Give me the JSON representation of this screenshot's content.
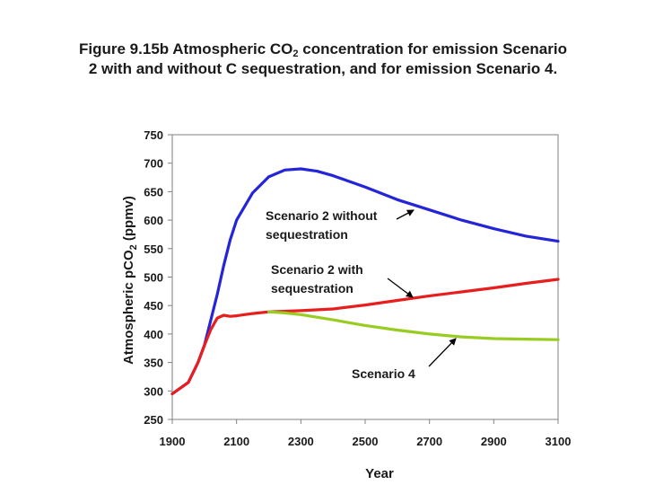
{
  "title": {
    "line1_prefix": "Figure 9.15b Atmospheric CO",
    "line1_sub": "2",
    "line1_suffix": " concentration for emission Scenario",
    "line2": "2 with and without C sequestration, and for emission Scenario 4."
  },
  "chart_data": {
    "type": "line",
    "xlabel": "Year",
    "ylabel_prefix": "Atmospheric pCO",
    "ylabel_sub": "2",
    "ylabel_suffix": " (ppmv)",
    "xlim": [
      1900,
      3100
    ],
    "ylim": [
      250,
      750
    ],
    "xticks": [
      1900,
      2100,
      2300,
      2500,
      2700,
      2900,
      3100
    ],
    "yticks": [
      250,
      300,
      350,
      400,
      450,
      500,
      550,
      600,
      650,
      700,
      750
    ],
    "grid": false,
    "series": [
      {
        "name": "Scenario 2 without sequestration",
        "color": "#2424d8",
        "x": [
          1900,
          1950,
          1980,
          2000,
          2020,
          2040,
          2060,
          2080,
          2100,
          2150,
          2200,
          2250,
          2300,
          2350,
          2400,
          2500,
          2600,
          2700,
          2800,
          2900,
          3000,
          3100
        ],
        "y": [
          295,
          315,
          350,
          380,
          425,
          470,
          520,
          565,
          600,
          648,
          676,
          688,
          690,
          686,
          678,
          658,
          636,
          618,
          600,
          585,
          572,
          563
        ]
      },
      {
        "name": "Scenario 2 with sequestration",
        "color": "#e81e1e",
        "x": [
          1900,
          1950,
          1980,
          2000,
          2020,
          2040,
          2060,
          2080,
          2100,
          2150,
          2200,
          2300,
          2400,
          2500,
          2600,
          2700,
          2800,
          2900,
          3000,
          3100
        ],
        "y": [
          295,
          315,
          350,
          380,
          408,
          428,
          433,
          431,
          432,
          436,
          439,
          441,
          444,
          451,
          459,
          467,
          474,
          481,
          489,
          496
        ]
      },
      {
        "name": "Scenario 4",
        "color": "#99cc22",
        "x": [
          2200,
          2250,
          2300,
          2400,
          2500,
          2600,
          2700,
          2800,
          2900,
          3000,
          3100
        ],
        "y": [
          439,
          437,
          434,
          425,
          415,
          407,
          400,
          395,
          392,
          391,
          390
        ]
      }
    ],
    "annotations": [
      {
        "text_line1": "Scenario 2 without",
        "text_line2": "sequestration"
      },
      {
        "text_line1": "Scenario 2 with",
        "text_line2": "sequestration"
      },
      {
        "text_line1": "Scenario 4"
      }
    ]
  }
}
